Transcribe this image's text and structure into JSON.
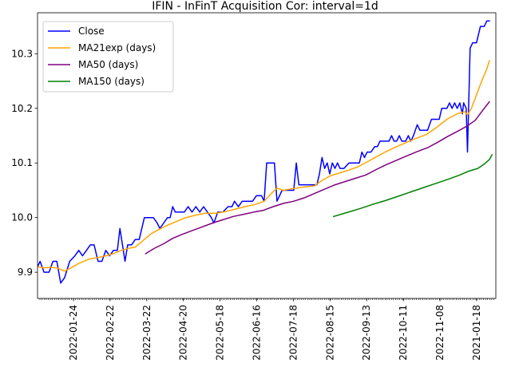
{
  "chart_data": {
    "type": "line",
    "title": "IFIN - InFinT Acquisition Cor: interval=1d",
    "xlabel": "",
    "ylabel": "",
    "x_ticks": [
      "2022-01-24",
      "2022-02-22",
      "2022-03-22",
      "2022-04-20",
      "2022-05-18",
      "2022-06-16",
      "2022-07-18",
      "2022-08-15",
      "2022-09-13",
      "2022-10-11",
      "2022-11-08",
      "2021-01-18"
    ],
    "y_ticks": [
      "9.9",
      "10.0",
      "10.1",
      "10.2",
      "10.3"
    ],
    "ylim": [
      9.852,
      10.375
    ],
    "legend_position": "upper-left",
    "grid": false,
    "series": [
      {
        "name": "Close",
        "color": "#0000ff",
        "points": [
          [
            0,
            9.91
          ],
          [
            4,
            9.92
          ],
          [
            10,
            9.9
          ],
          [
            18,
            9.9
          ],
          [
            24,
            9.92
          ],
          [
            30,
            9.92
          ],
          [
            36,
            9.88
          ],
          [
            42,
            9.89
          ],
          [
            50,
            9.92
          ],
          [
            58,
            9.93
          ],
          [
            64,
            9.94
          ],
          [
            70,
            9.93
          ],
          [
            76,
            9.94
          ],
          [
            82,
            9.95
          ],
          [
            88,
            9.95
          ],
          [
            94,
            9.92
          ],
          [
            100,
            9.92
          ],
          [
            106,
            9.94
          ],
          [
            112,
            9.93
          ],
          [
            118,
            9.94
          ],
          [
            124,
            9.94
          ],
          [
            128,
            9.98
          ],
          [
            132,
            9.95
          ],
          [
            136,
            9.92
          ],
          [
            140,
            9.95
          ],
          [
            146,
            9.95
          ],
          [
            152,
            9.96
          ],
          [
            158,
            9.96
          ],
          [
            166,
            10.0
          ],
          [
            174,
            10.0
          ],
          [
            180,
            10.0
          ],
          [
            186,
            9.99
          ],
          [
            190,
            9.98
          ],
          [
            196,
            9.99
          ],
          [
            202,
            10.0
          ],
          [
            206,
            10.0
          ],
          [
            210,
            10.02
          ],
          [
            214,
            10.01
          ],
          [
            220,
            10.01
          ],
          [
            228,
            10.01
          ],
          [
            234,
            10.02
          ],
          [
            240,
            10.01
          ],
          [
            246,
            10.02
          ],
          [
            252,
            10.01
          ],
          [
            258,
            10.02
          ],
          [
            264,
            10.01
          ],
          [
            270,
            10.0
          ],
          [
            274,
            9.99
          ],
          [
            280,
            10.01
          ],
          [
            288,
            10.01
          ],
          [
            296,
            10.02
          ],
          [
            302,
            10.02
          ],
          [
            306,
            10.03
          ],
          [
            312,
            10.02
          ],
          [
            318,
            10.03
          ],
          [
            326,
            10.03
          ],
          [
            334,
            10.03
          ],
          [
            340,
            10.04
          ],
          [
            348,
            10.04
          ],
          [
            352,
            10.03
          ],
          [
            356,
            10.1
          ],
          [
            362,
            10.1
          ],
          [
            368,
            10.1
          ],
          [
            372,
            10.03
          ],
          [
            380,
            10.05
          ],
          [
            386,
            10.05
          ],
          [
            392,
            10.05
          ],
          [
            398,
            10.05
          ],
          [
            402,
            10.1
          ],
          [
            406,
            10.06
          ],
          [
            414,
            10.06
          ],
          [
            422,
            10.06
          ],
          [
            428,
            10.06
          ],
          [
            434,
            10.06
          ],
          [
            438,
            10.08
          ],
          [
            442,
            10.11
          ],
          [
            446,
            10.09
          ],
          [
            450,
            10.1
          ],
          [
            454,
            10.08
          ],
          [
            458,
            10.1
          ],
          [
            462,
            10.09
          ],
          [
            466,
            10.1
          ],
          [
            470,
            10.09
          ],
          [
            476,
            10.09
          ],
          [
            484,
            10.1
          ],
          [
            492,
            10.1
          ],
          [
            500,
            10.1
          ],
          [
            504,
            10.12
          ],
          [
            508,
            10.11
          ],
          [
            512,
            10.12
          ],
          [
            518,
            10.12
          ],
          [
            524,
            10.13
          ],
          [
            528,
            10.13
          ],
          [
            532,
            10.14
          ],
          [
            538,
            10.14
          ],
          [
            546,
            10.14
          ],
          [
            550,
            10.15
          ],
          [
            554,
            10.14
          ],
          [
            558,
            10.14
          ],
          [
            562,
            10.15
          ],
          [
            566,
            10.14
          ],
          [
            572,
            10.14
          ],
          [
            576,
            10.15
          ],
          [
            580,
            10.14
          ],
          [
            584,
            10.15
          ],
          [
            590,
            10.17
          ],
          [
            594,
            10.16
          ],
          [
            600,
            10.16
          ],
          [
            606,
            10.16
          ],
          [
            612,
            10.18
          ],
          [
            618,
            10.18
          ],
          [
            624,
            10.18
          ],
          [
            628,
            10.2
          ],
          [
            632,
            10.2
          ],
          [
            636,
            10.2
          ],
          [
            640,
            10.21
          ],
          [
            644,
            10.2
          ],
          [
            648,
            10.21
          ],
          [
            652,
            10.2
          ],
          [
            656,
            10.21
          ],
          [
            660,
            10.19
          ],
          [
            662,
            10.21
          ],
          [
            666,
            10.2
          ],
          [
            668,
            10.12
          ],
          [
            672,
            10.31
          ],
          [
            676,
            10.32
          ],
          [
            682,
            10.32
          ],
          [
            688,
            10.35
          ],
          [
            694,
            10.35
          ],
          [
            698,
            10.36
          ],
          [
            702,
            10.36
          ]
        ]
      },
      {
        "name": "MA21exp (days)",
        "color": "#ffa500",
        "points": [
          [
            0,
            9.91
          ],
          [
            10,
            9.908
          ],
          [
            20,
            9.909
          ],
          [
            30,
            9.908
          ],
          [
            36,
            9.905
          ],
          [
            42,
            9.902
          ],
          [
            52,
            9.908
          ],
          [
            64,
            9.916
          ],
          [
            80,
            9.924
          ],
          [
            94,
            9.927
          ],
          [
            106,
            9.93
          ],
          [
            118,
            9.934
          ],
          [
            130,
            9.94
          ],
          [
            142,
            9.944
          ],
          [
            152,
            9.946
          ],
          [
            164,
            9.958
          ],
          [
            176,
            9.97
          ],
          [
            188,
            9.978
          ],
          [
            200,
            9.985
          ],
          [
            214,
            9.992
          ],
          [
            228,
            9.999
          ],
          [
            244,
            10.004
          ],
          [
            260,
            10.008
          ],
          [
            276,
            10.008
          ],
          [
            292,
            10.011
          ],
          [
            306,
            10.015
          ],
          [
            322,
            10.02
          ],
          [
            338,
            10.024
          ],
          [
            352,
            10.03
          ],
          [
            364,
            10.045
          ],
          [
            372,
            10.054
          ],
          [
            382,
            10.05
          ],
          [
            396,
            10.053
          ],
          [
            414,
            10.056
          ],
          [
            430,
            10.058
          ],
          [
            442,
            10.068
          ],
          [
            456,
            10.077
          ],
          [
            470,
            10.082
          ],
          [
            484,
            10.087
          ],
          [
            498,
            10.093
          ],
          [
            512,
            10.102
          ],
          [
            526,
            10.111
          ],
          [
            540,
            10.12
          ],
          [
            556,
            10.129
          ],
          [
            572,
            10.137
          ],
          [
            588,
            10.145
          ],
          [
            604,
            10.152
          ],
          [
            620,
            10.165
          ],
          [
            636,
            10.18
          ],
          [
            652,
            10.19
          ],
          [
            664,
            10.194
          ],
          [
            668,
            10.188
          ],
          [
            674,
            10.2
          ],
          [
            682,
            10.225
          ],
          [
            690,
            10.25
          ],
          [
            698,
            10.272
          ],
          [
            702,
            10.287
          ]
        ]
      },
      {
        "name": "MA50 (days)",
        "color": "#800080",
        "points": [
          [
            168,
            9.934
          ],
          [
            182,
            9.944
          ],
          [
            196,
            9.952
          ],
          [
            210,
            9.962
          ],
          [
            224,
            9.969
          ],
          [
            240,
            9.976
          ],
          [
            256,
            9.983
          ],
          [
            272,
            9.99
          ],
          [
            288,
            9.996
          ],
          [
            304,
            10.002
          ],
          [
            320,
            10.006
          ],
          [
            336,
            10.01
          ],
          [
            350,
            10.013
          ],
          [
            366,
            10.02
          ],
          [
            382,
            10.026
          ],
          [
            398,
            10.03
          ],
          [
            414,
            10.036
          ],
          [
            430,
            10.044
          ],
          [
            446,
            10.052
          ],
          [
            462,
            10.06
          ],
          [
            478,
            10.066
          ],
          [
            494,
            10.072
          ],
          [
            510,
            10.078
          ],
          [
            526,
            10.088
          ],
          [
            542,
            10.097
          ],
          [
            558,
            10.105
          ],
          [
            574,
            10.113
          ],
          [
            590,
            10.121
          ],
          [
            606,
            10.128
          ],
          [
            622,
            10.138
          ],
          [
            638,
            10.149
          ],
          [
            654,
            10.159
          ],
          [
            668,
            10.168
          ],
          [
            680,
            10.178
          ],
          [
            692,
            10.197
          ],
          [
            702,
            10.212
          ]
        ]
      },
      {
        "name": "MA150 (days)",
        "color": "#008000",
        "points": [
          [
            460,
            10.002
          ],
          [
            480,
            10.009
          ],
          [
            500,
            10.016
          ],
          [
            520,
            10.024
          ],
          [
            540,
            10.031
          ],
          [
            560,
            10.039
          ],
          [
            580,
            10.047
          ],
          [
            600,
            10.055
          ],
          [
            620,
            10.063
          ],
          [
            640,
            10.071
          ],
          [
            656,
            10.078
          ],
          [
            670,
            10.085
          ],
          [
            684,
            10.09
          ],
          [
            694,
            10.098
          ],
          [
            702,
            10.106
          ],
          [
            706,
            10.115
          ]
        ]
      }
    ]
  }
}
